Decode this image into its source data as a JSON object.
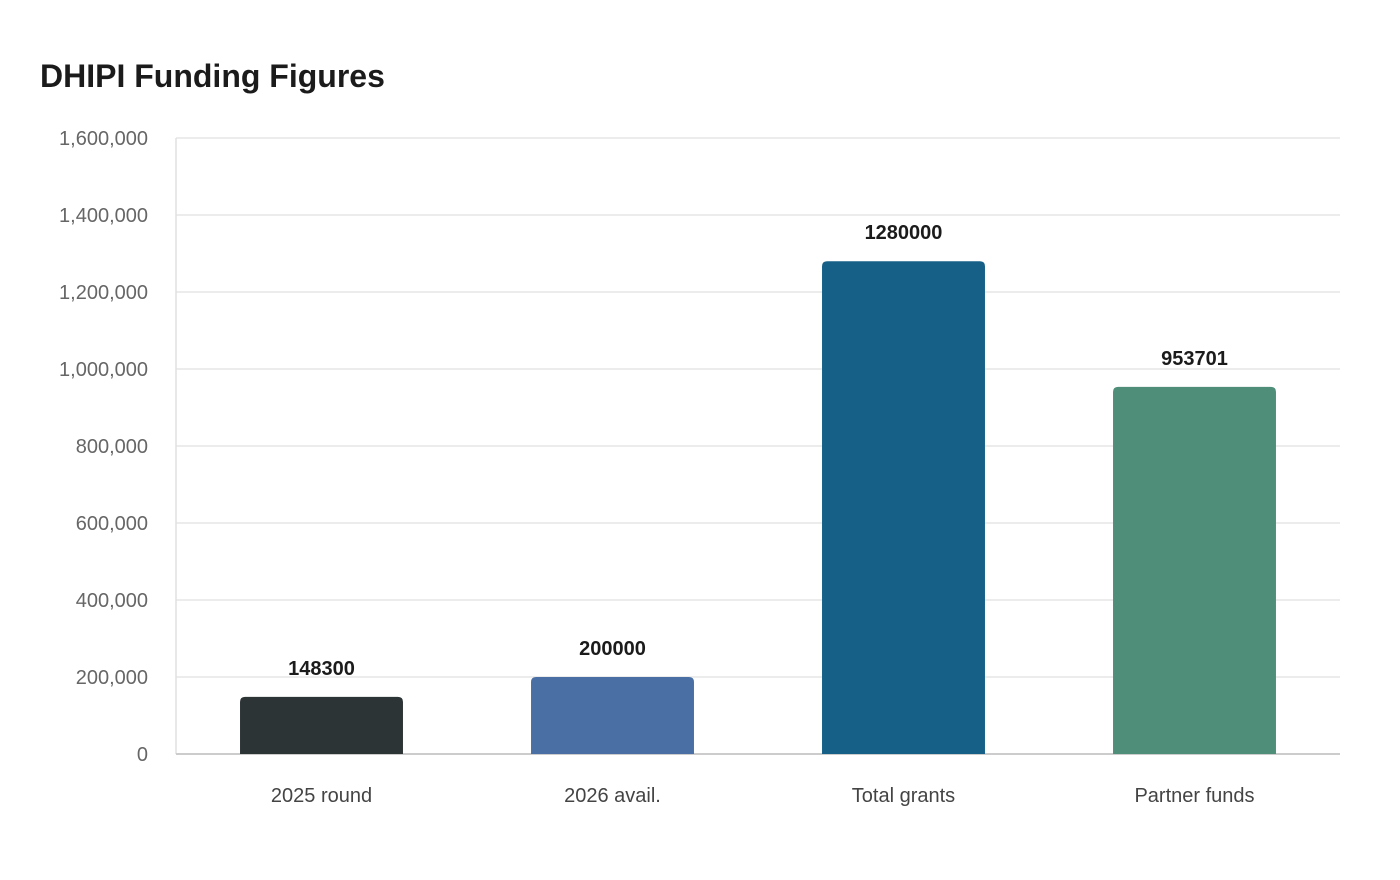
{
  "chart_data": {
    "type": "bar",
    "title": "DHIPI Funding Figures",
    "xlabel": "",
    "ylabel": "",
    "categories": [
      "2025 round",
      "2026 avail.",
      "Total grants",
      "Partner funds"
    ],
    "values": [
      148300,
      200000,
      1280000,
      953701
    ],
    "value_labels": [
      "148300",
      "200000",
      "1280000",
      "953701"
    ],
    "colors": [
      "#2d3436",
      "#4a6fa5",
      "#166088",
      "#4f8f7a"
    ],
    "ylim": [
      0,
      1600000
    ],
    "y_ticks": [
      0,
      200000,
      400000,
      600000,
      800000,
      1000000,
      1200000,
      1400000,
      1600000
    ],
    "y_tick_labels": [
      "0",
      "200,000",
      "400,000",
      "600,000",
      "800,000",
      "1,000,000",
      "1,200,000",
      "1,400,000",
      "1,600,000"
    ],
    "grid": true,
    "legend": "none"
  }
}
